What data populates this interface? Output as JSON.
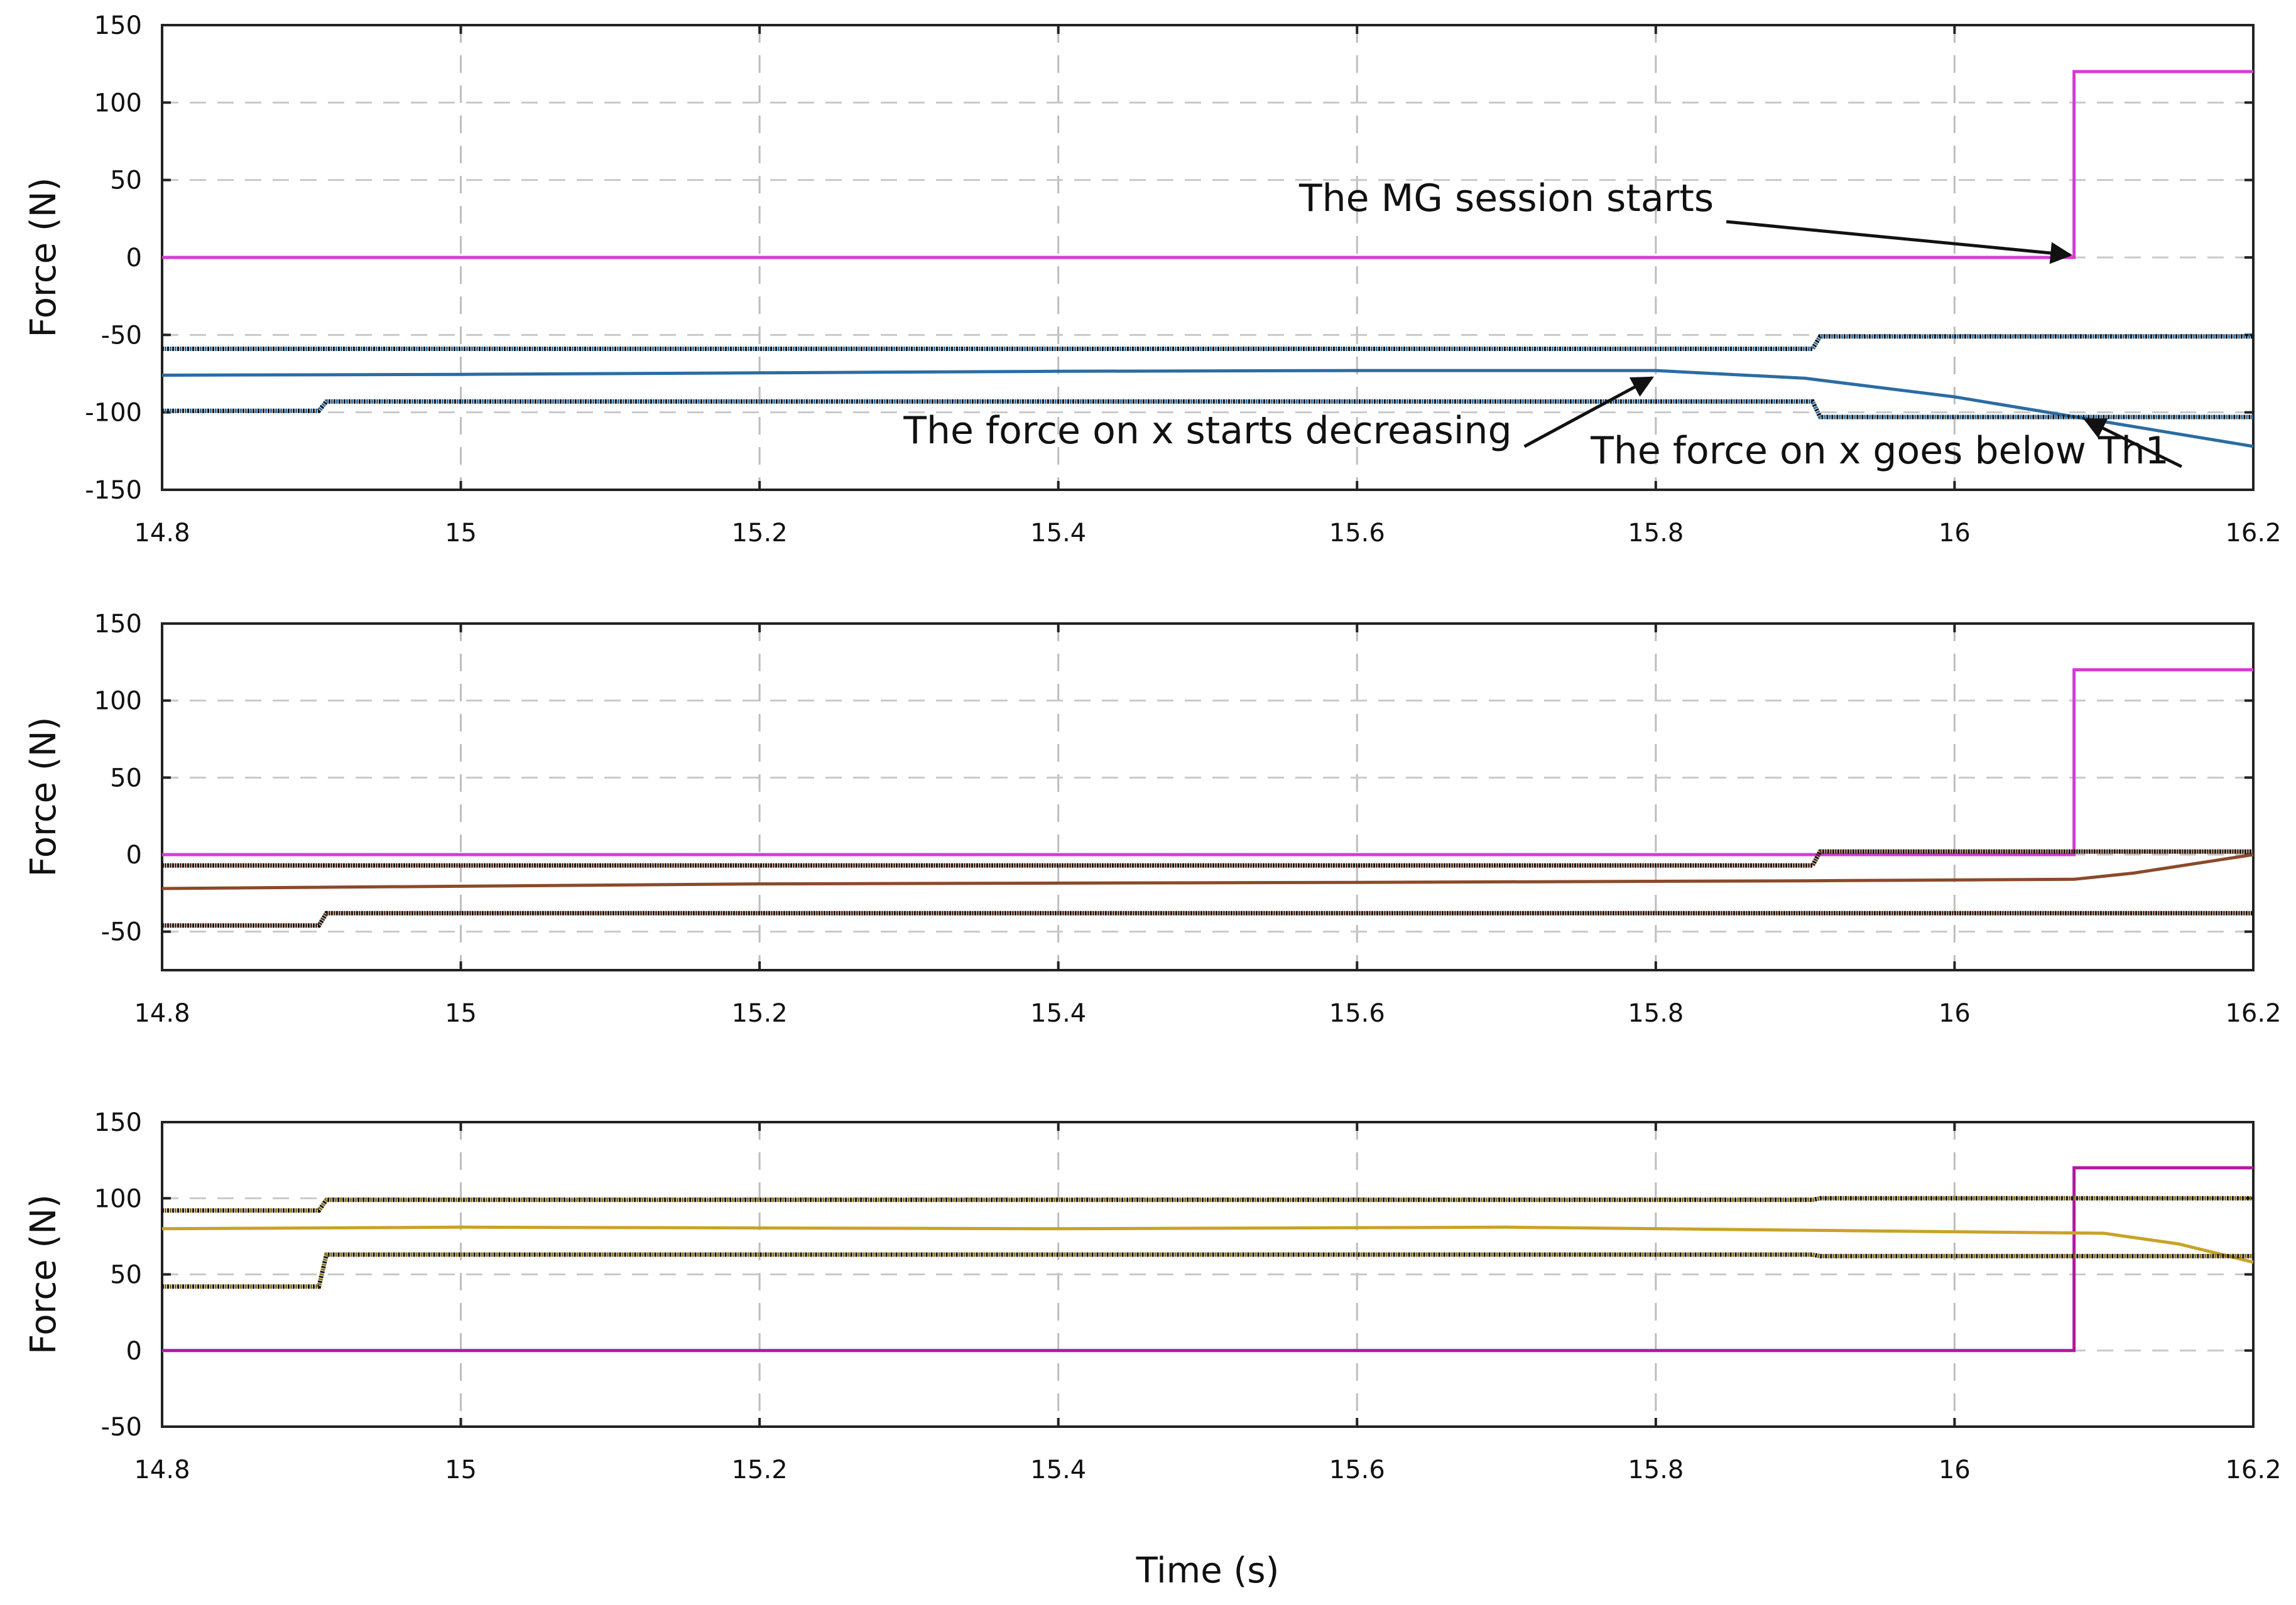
{
  "chart_data": [
    {
      "type": "line",
      "xlabel": "",
      "ylabel": "Force (N)",
      "xlim": [
        14.8,
        16.2
      ],
      "ylim": [
        -150,
        150
      ],
      "x_ticks": [
        "14.8",
        "15",
        "15.2",
        "15.4",
        "15.6",
        "15.8",
        "16",
        "16.2"
      ],
      "y_ticks": [
        "150",
        "100",
        "50",
        "0",
        "-50",
        "-100",
        "-150"
      ],
      "y_tick_values": [
        150,
        100,
        50,
        0,
        -50,
        -100,
        -150
      ],
      "grid": true,
      "series": [
        {
          "color": "#d63bd6",
          "style": "solid",
          "x": [
            14.8,
            16.08,
            16.08,
            16.2
          ],
          "y": [
            0,
            0,
            120,
            120
          ]
        },
        {
          "color": "#2b6ca3",
          "style": "solid",
          "x": [
            14.8,
            15.0,
            15.2,
            15.4,
            15.6,
            15.8,
            15.9,
            16.0,
            16.1,
            16.2
          ],
          "y": [
            -76,
            -75.5,
            -74.5,
            -73.5,
            -73,
            -73,
            -78,
            -90,
            -106,
            -122
          ]
        },
        {
          "color": "#2b6ca3",
          "style": "dotted",
          "x": [
            14.8,
            15.905,
            15.91,
            16.2
          ],
          "y": [
            -59,
            -59,
            -51,
            -51
          ]
        },
        {
          "color": "#2b6ca3",
          "style": "dotted",
          "x": [
            14.8,
            14.905,
            14.91,
            15.905,
            15.91,
            16.2
          ],
          "y": [
            -99,
            -99,
            -93,
            -93,
            -103,
            -103
          ]
        }
      ],
      "annotations": [
        {
          "text": "The MG session starts",
          "x": 15.7,
          "y": 30,
          "point_to": [
            16.08,
            0
          ]
        },
        {
          "text": "The force on x starts decreasing",
          "x": 15.5,
          "y": -120,
          "point_to": [
            15.8,
            -76
          ]
        },
        {
          "text": "The force on x goes below Th1",
          "x": 15.95,
          "y": -133,
          "point_to": [
            16.085,
            -103
          ]
        }
      ]
    },
    {
      "type": "line",
      "xlabel": "",
      "ylabel": "Force (N)",
      "xlim": [
        14.8,
        16.2
      ],
      "ylim": [
        -75,
        150
      ],
      "x_ticks": [
        "14.8",
        "15",
        "15.2",
        "15.4",
        "15.6",
        "15.8",
        "16",
        "16.2"
      ],
      "y_ticks": [
        "150",
        "100",
        "50",
        "0",
        "-50"
      ],
      "y_tick_values": [
        150,
        100,
        50,
        0,
        -50
      ],
      "grid": true,
      "series": [
        {
          "color": "#d63bd6",
          "style": "solid",
          "x": [
            14.8,
            16.08,
            16.08,
            16.2
          ],
          "y": [
            0,
            0,
            120,
            120
          ]
        },
        {
          "color": "#8a4a2a",
          "style": "solid",
          "x": [
            14.8,
            15.2,
            15.6,
            15.9,
            16.08,
            16.12,
            16.2
          ],
          "y": [
            -22,
            -19,
            -18,
            -17,
            -16,
            -12,
            0
          ]
        },
        {
          "color": "#5a2a10",
          "style": "dotted",
          "x": [
            14.8,
            15.905,
            15.91,
            16.2
          ],
          "y": [
            -7,
            -7,
            2,
            2
          ]
        },
        {
          "color": "#5a2a10",
          "style": "dotted",
          "x": [
            14.8,
            14.905,
            14.91,
            16.2
          ],
          "y": [
            -46,
            -46,
            -38,
            -38
          ]
        }
      ],
      "annotations": []
    },
    {
      "type": "line",
      "xlabel": "Time (s)",
      "ylabel": "Force (N)",
      "xlim": [
        14.8,
        16.2
      ],
      "ylim": [
        -50,
        150
      ],
      "x_ticks": [
        "14.8",
        "15",
        "15.2",
        "15.4",
        "15.6",
        "15.8",
        "16",
        "16.2"
      ],
      "y_ticks": [
        "150",
        "100",
        "50",
        "0",
        "-50"
      ],
      "y_tick_values": [
        150,
        100,
        50,
        0,
        -50
      ],
      "grid": true,
      "series": [
        {
          "color": "#b5179e",
          "style": "solid",
          "x": [
            14.8,
            16.08,
            16.08,
            16.2
          ],
          "y": [
            0,
            0,
            120,
            120
          ]
        },
        {
          "color": "#c9a227",
          "style": "solid",
          "x": [
            14.8,
            15.0,
            15.4,
            15.7,
            16.0,
            16.1,
            16.15,
            16.2
          ],
          "y": [
            80,
            81,
            80,
            81,
            78,
            77,
            70,
            58
          ]
        },
        {
          "color": "#8a6d10",
          "style": "dotted",
          "x": [
            14.8,
            14.905,
            14.91,
            15.905,
            15.91,
            16.2
          ],
          "y": [
            92,
            92,
            99,
            99,
            100,
            100
          ]
        },
        {
          "color": "#8a6d10",
          "style": "dotted",
          "x": [
            14.8,
            14.905,
            14.91,
            15.905,
            15.91,
            16.2
          ],
          "y": [
            42,
            42,
            63,
            63,
            62,
            62
          ]
        }
      ],
      "annotations": []
    }
  ]
}
